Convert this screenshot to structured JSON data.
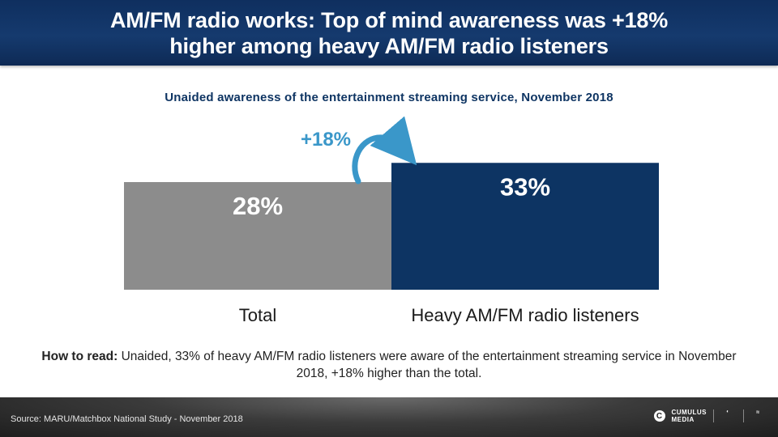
{
  "header": {
    "title_line1": "AM/FM radio works: Top of mind awareness was +18%",
    "title_line2": "higher among heavy AM/FM radio listeners"
  },
  "chart_data": {
    "type": "bar",
    "title": "Unaided  awareness of the entertainment  streaming service, November 2018",
    "categories": [
      "Total",
      "Heavy AM/FM radio listeners"
    ],
    "values": [
      28,
      33
    ],
    "value_labels": [
      "28%",
      "33%"
    ],
    "colors": [
      "#8c8c8c",
      "#0d3463"
    ],
    "annotation": "+18%",
    "annotation_color": "#3a97c9",
    "grid": false,
    "legend": "none"
  },
  "how_to_read": {
    "label": "How to read:",
    "text": " Unaided, 33% of heavy AM/FM radio listeners were aware of the entertainment streaming service in November 2018, +18% higher than the total."
  },
  "footer": {
    "source": "Source: MARU/Matchbox National Study - November 2018",
    "logo_name": "cumulus-logo",
    "logo_text_1": "CUMULUS",
    "logo_text_2": "MEDIA"
  }
}
